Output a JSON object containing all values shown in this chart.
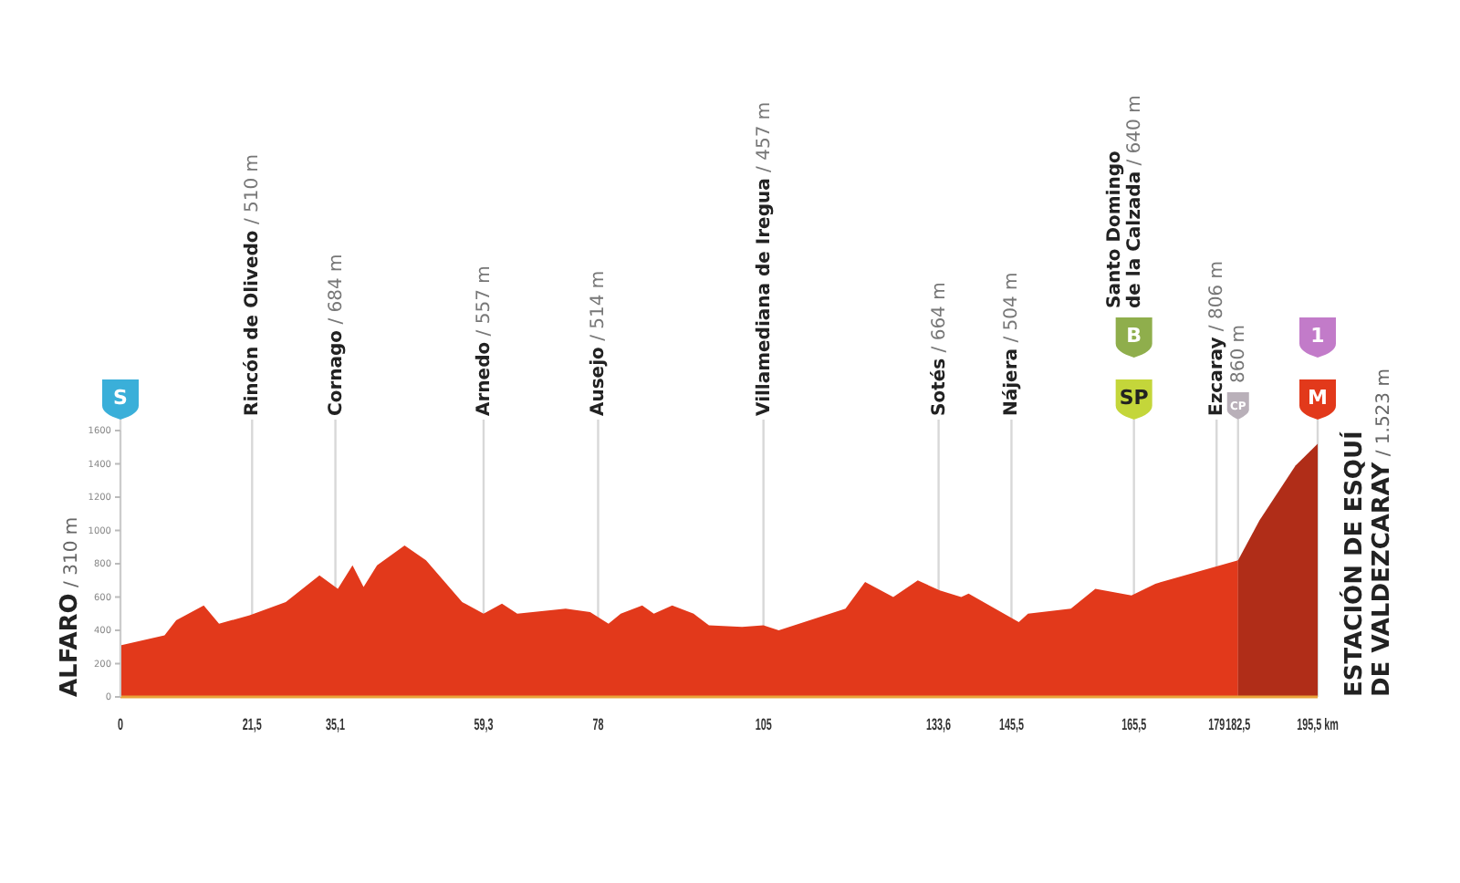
{
  "chart_data": {
    "type": "area",
    "grid": "x",
    "xlim": [
      0,
      195.5
    ],
    "ylim": [
      0,
      1600
    ],
    "xticks": [
      0,
      {
        "value": 21.5,
        "label": "21,5"
      },
      {
        "value": 35.1,
        "label": "35,1"
      },
      {
        "value": 59.3,
        "label": "59,3"
      },
      78,
      105,
      {
        "value": 133.6,
        "label": "133,6"
      },
      {
        "value": 145.5,
        "label": "145,5"
      },
      {
        "value": 165.5,
        "label": "165,5"
      },
      179,
      {
        "value": 182.5,
        "label": "182,5"
      },
      {
        "value": 195.5,
        "label": "195,5 km"
      }
    ],
    "yticks": [
      0,
      200,
      400,
      600,
      800,
      1000,
      1200,
      1400,
      1600
    ],
    "series": [
      {
        "color": "#e2391b",
        "x": [
          0,
          7.2,
          9.1,
          13.6,
          16.1,
          21.1,
          27,
          32.5,
          35.5,
          37.9,
          39.7,
          41.9,
          46.4,
          49.9,
          55.8,
          59.3,
          62.3,
          64.8,
          72.7,
          76.7,
          79.7,
          81.7,
          85.2,
          87.1,
          90.1,
          93.6,
          96.1,
          101.5,
          105,
          107.5,
          118.4,
          121.6,
          126.2,
          130.2,
          133.8,
          137.3,
          138.5,
          146.7,
          148.2,
          155.2,
          159.2,
          165.1,
          169,
          182.5
        ],
        "values": [
          310,
          370,
          460,
          550,
          440,
          490,
          570,
          730,
          650,
          790,
          660,
          790,
          910,
          820,
          570,
          500,
          560,
          500,
          530,
          510,
          440,
          500,
          550,
          500,
          550,
          500,
          430,
          420,
          430,
          400,
          530,
          690,
          600,
          700,
          640,
          600,
          620,
          450,
          500,
          530,
          650,
          610,
          680,
          820
        ]
      },
      {
        "color": "#b02d18",
        "x": [
          182.5,
          186,
          191.9,
          195.5
        ],
        "values": [
          820,
          1060,
          1390,
          1520
        ]
      }
    ],
    "annotations": [
      "ALFARO / 310 m",
      "ESTACIÓN DE ESQUÍ\nDE VALDEZCARAY / 1.523 m",
      "Rincón de Olivedo / 510 m",
      "Cornago / 684 m",
      "Arnedo / 557 m",
      "Ausejo / 514 m",
      "Villamediana de Iregua / 457 m",
      "Sotés / 664 m",
      "Nájera / 504 m",
      "Santo Domingo\nde la Calzada / 640 m",
      "Ezcaray / 806 m",
      "860 m",
      "S",
      "SP",
      "B",
      "CP",
      "M",
      "1"
    ]
  }
}
